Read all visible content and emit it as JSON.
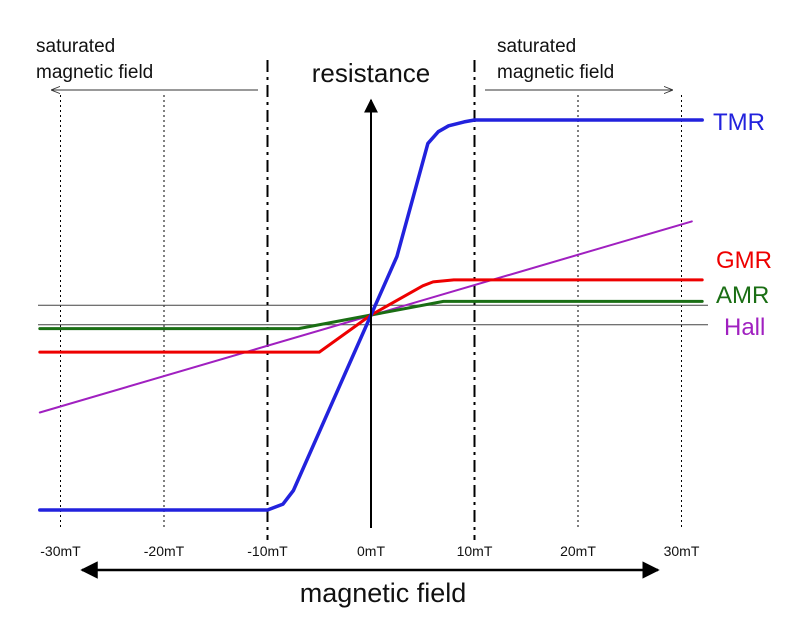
{
  "chart_data": {
    "type": "line",
    "xlabel": "magnetic field",
    "ylabel": "resistance",
    "x_unit": "mT",
    "xlim": [
      -32,
      32
    ],
    "ylim": [
      -1,
      1
    ],
    "x_ticks": [
      {
        "value": -30,
        "label": "-30mT"
      },
      {
        "value": -20,
        "label": "-20mT"
      },
      {
        "value": -10,
        "label": "-10mT"
      },
      {
        "value": 0,
        "label": "0mT"
      },
      {
        "value": 10,
        "label": "10mT"
      },
      {
        "value": 20,
        "label": "20mT"
      },
      {
        "value": 30,
        "label": "30mT"
      }
    ],
    "saturation_markers": [
      -10,
      10
    ],
    "annotations": [
      {
        "text": "saturated magnetic field",
        "line1": "saturated",
        "line2": "magnetic field",
        "side": "left"
      },
      {
        "text": "saturated magnetic field",
        "line1": "saturated",
        "line2": "magnetic field",
        "side": "right"
      }
    ],
    "reference_lines": [
      0.05,
      -0.05
    ],
    "series": [
      {
        "name": "TMR",
        "color": "#2222dd",
        "x": [
          -32,
          -10,
          -8.5,
          -7.5,
          -2.5,
          2.5,
          5.5,
          6.5,
          7.5,
          9,
          10,
          32
        ],
        "y": [
          -1,
          -1,
          -0.97,
          -0.9,
          -0.3,
          0.3,
          0.88,
          0.94,
          0.97,
          0.99,
          1,
          1
        ]
      },
      {
        "name": "GMR",
        "color": "#ee0000",
        "x": [
          -32,
          -5,
          0,
          5,
          6,
          8,
          32
        ],
        "y": [
          -0.19,
          -0.19,
          0,
          0.15,
          0.17,
          0.18,
          0.18
        ]
      },
      {
        "name": "AMR",
        "color": "#1a6e14",
        "x": [
          -32,
          -7,
          0,
          7,
          32
        ],
        "y": [
          -0.07,
          -0.07,
          0,
          0.07,
          0.07
        ]
      },
      {
        "name": "Hall",
        "color": "#a020c0",
        "x": [
          -32,
          31
        ],
        "y": [
          -0.5,
          0.48
        ]
      }
    ]
  }
}
